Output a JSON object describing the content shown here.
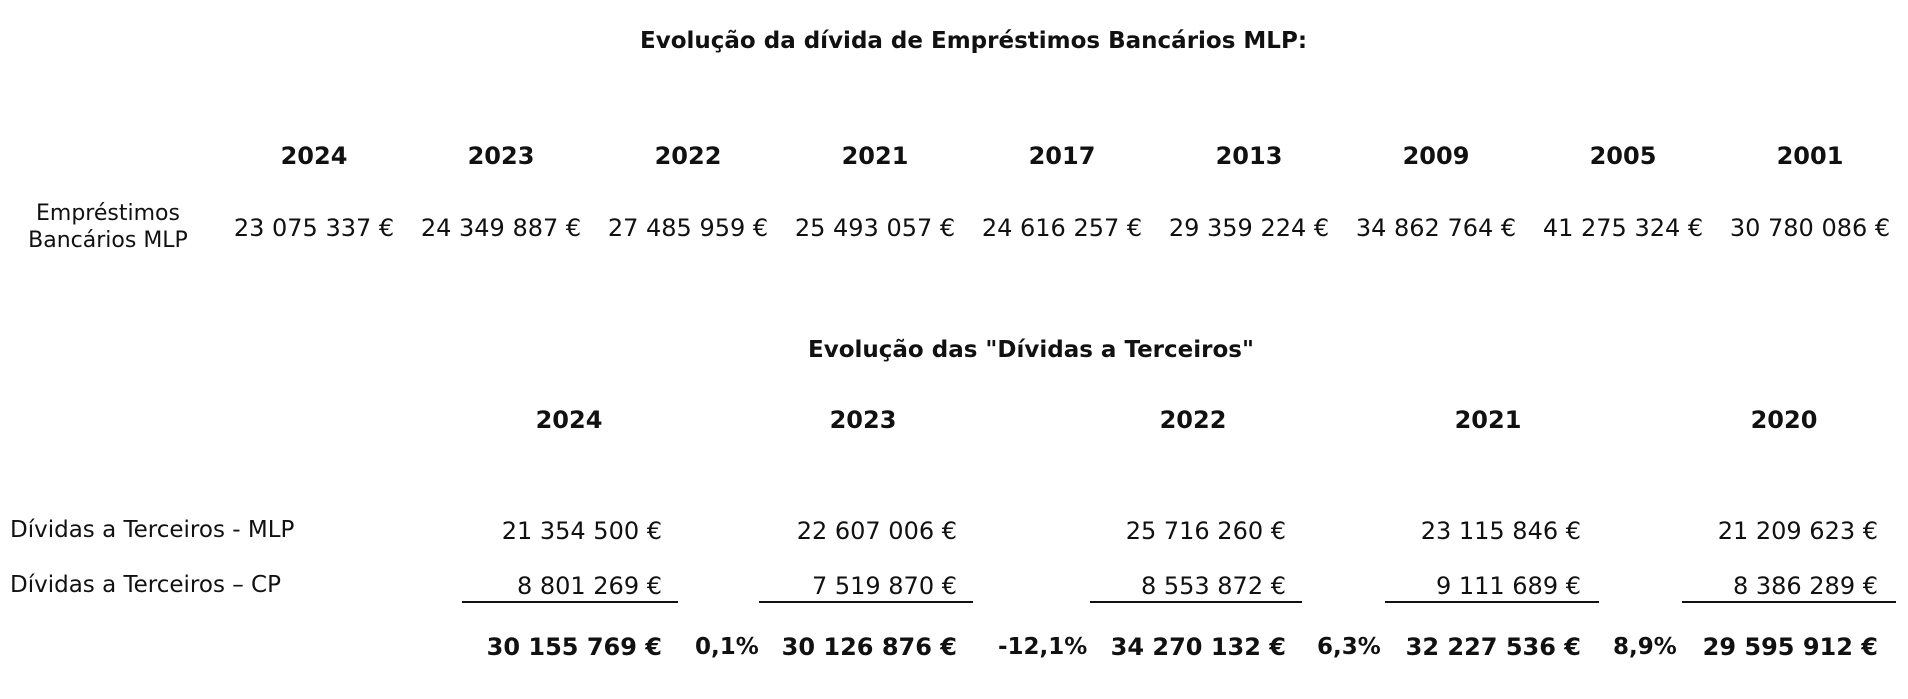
{
  "section1": {
    "title": "Evolução da dívida de Empréstimos Bancários MLP:",
    "years": [
      "2024",
      "2023",
      "2022",
      "2021",
      "2017",
      "2013",
      "2009",
      "2005",
      "2001"
    ],
    "row_label_line1": "Empréstimos",
    "row_label_line2": "Bancários MLP",
    "values": [
      "23 075 337 €",
      "24 349 887 €",
      "27 485 959 €",
      "25 493 057 €",
      "24 616 257 €",
      "29 359 224 €",
      "34 862 764 €",
      "41 275 324 €",
      "30 780 086 €"
    ]
  },
  "section2": {
    "title": "Evolução das \"Dívidas a Terceiros\"",
    "years": [
      "2024",
      "2023",
      "2022",
      "2021",
      "2020"
    ],
    "mlp_label": "Dívidas a Terceiros - MLP",
    "cp_label": "Dívidas a Terceiros – CP",
    "mlp_values": [
      "21 354 500 €",
      "22 607 006 €",
      "25 716 260 €",
      "23 115 846 €",
      "21 209 623 €"
    ],
    "cp_values": [
      "8 801 269 €",
      "7 519 870 €",
      "8 553 872 €",
      "9 111 689 €",
      "8 386 289 €"
    ],
    "totals": [
      "30 155 769 €",
      "30 126 876 €",
      "34 270 132 €",
      "32 227 536 €",
      "29 595 912 €"
    ],
    "pct_changes": [
      "0,1%",
      "-12,1%",
      "6,3%",
      "8,9%"
    ]
  }
}
